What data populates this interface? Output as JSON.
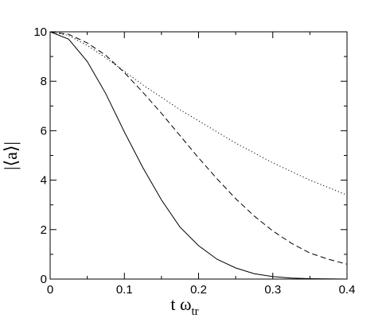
{
  "chart_data": {
    "type": "line",
    "xlabel": "t ω",
    "xlabel_sub": "tr",
    "ylabel": "|⟨a⟩|",
    "xlim": [
      0,
      0.4
    ],
    "ylim": [
      0,
      10
    ],
    "x_ticks": [
      "0",
      "0.1",
      "0.2",
      "0.3",
      "0.4"
    ],
    "y_ticks": [
      "0",
      "2",
      "4",
      "6",
      "8",
      "10"
    ],
    "grid": false,
    "legend": "none",
    "series": [
      {
        "style": "solid",
        "x": [
          0,
          0.025,
          0.05,
          0.075,
          0.1,
          0.125,
          0.15,
          0.175,
          0.2,
          0.225,
          0.25,
          0.275,
          0.3,
          0.325,
          0.35,
          0.375,
          0.4
        ],
        "y": [
          10,
          9.7,
          8.8,
          7.5,
          5.95,
          4.5,
          3.2,
          2.1,
          1.35,
          0.8,
          0.45,
          0.22,
          0.1,
          0.04,
          0.015,
          0.005,
          0.0
        ]
      },
      {
        "style": "dashed",
        "x": [
          0,
          0.025,
          0.05,
          0.075,
          0.1,
          0.125,
          0.15,
          0.175,
          0.2,
          0.225,
          0.25,
          0.275,
          0.3,
          0.325,
          0.35,
          0.375,
          0.4
        ],
        "y": [
          10,
          9.9,
          9.55,
          9.05,
          8.35,
          7.55,
          6.7,
          5.8,
          4.9,
          4.05,
          3.25,
          2.55,
          1.95,
          1.45,
          1.05,
          0.8,
          0.6
        ]
      },
      {
        "style": "dotted",
        "x": [
          0,
          0.025,
          0.05,
          0.075,
          0.1,
          0.125,
          0.15,
          0.175,
          0.2,
          0.225,
          0.25,
          0.275,
          0.3,
          0.325,
          0.35,
          0.375,
          0.4
        ],
        "y": [
          10,
          9.85,
          9.45,
          8.95,
          8.4,
          7.85,
          7.35,
          6.85,
          6.4,
          5.95,
          5.5,
          5.1,
          4.7,
          4.35,
          4.0,
          3.7,
          3.4
        ]
      }
    ]
  }
}
